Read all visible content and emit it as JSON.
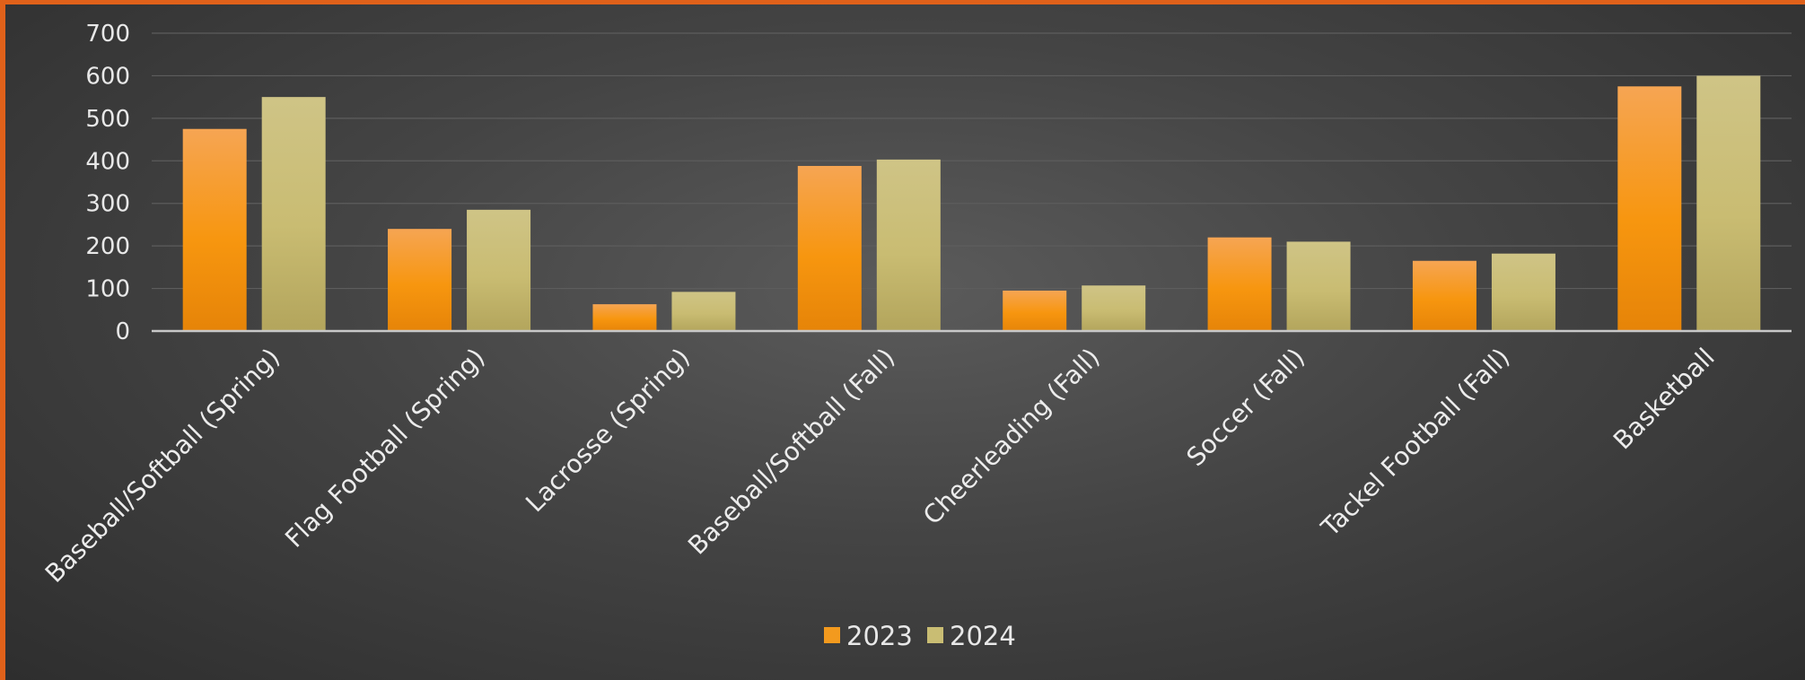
{
  "chart_data": {
    "type": "bar",
    "title": "",
    "xlabel": "",
    "ylabel": "",
    "ylim": [
      0,
      700
    ],
    "yticks": [
      0,
      100,
      200,
      300,
      400,
      500,
      600,
      700
    ],
    "grid": true,
    "legend_position": "bottom",
    "categories": [
      "Baseball/Softball (Spring)",
      "Flag Football (Spring)",
      "Lacrosse (Spring)",
      "Baseball/Softball (Fall)",
      "Cheerleading (Fall)",
      "Soccer (Fall)",
      "Tackel Football (Fall)",
      "Basketball"
    ],
    "series": [
      {
        "name": "2023",
        "values": [
          475,
          240,
          63,
          388,
          95,
          220,
          165,
          575
        ],
        "color": "#f39a1e"
      },
      {
        "name": "2024",
        "values": [
          550,
          285,
          92,
          403,
          107,
          210,
          182,
          600
        ],
        "color": "#c9bd73"
      }
    ]
  }
}
